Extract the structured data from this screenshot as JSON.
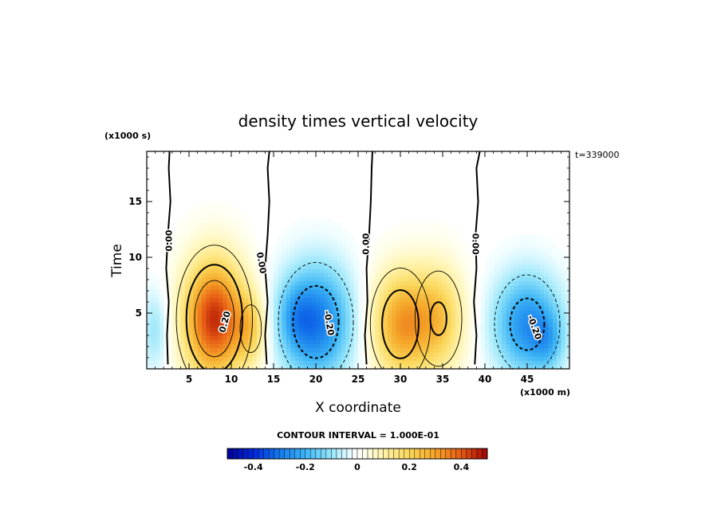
{
  "chart_data": {
    "type": "heatmap",
    "title": "density times vertical velocity",
    "xlabel": "X coordinate",
    "ylabel": "Time",
    "x_unit": "(x1000 m)",
    "y_unit": "(x1000 s)",
    "time_stamp": "t=339000",
    "xlim": [
      0,
      50
    ],
    "ylim": [
      0,
      19.5
    ],
    "x_ticks": [
      5,
      10,
      15,
      20,
      25,
      30,
      35,
      40,
      45
    ],
    "y_ticks": [
      5,
      10,
      15
    ],
    "contour_interval_label": "CONTOUR INTERVAL = 1.000E-01",
    "contour_labels": [
      "0.00",
      "0.00",
      "0.00",
      "0.00",
      "0.20",
      "-0.20",
      "-0.20"
    ],
    "colorbar": {
      "min": -0.5,
      "max": 0.5,
      "ticks": [
        "-0.4",
        "-0.2",
        "0",
        "0.2",
        "0.4"
      ],
      "tick_values": [
        -0.4,
        -0.2,
        0,
        0.2,
        0.4
      ]
    },
    "blobs": [
      {
        "x": 8,
        "y": 4.5,
        "sx": 2.6,
        "sy": 3.8,
        "amp": 0.45
      },
      {
        "x": 12.3,
        "y": 3.6,
        "sx": 1.3,
        "sy": 2.2,
        "amp": 0.16
      },
      {
        "x": 20,
        "y": 4.2,
        "sx": 3.0,
        "sy": 3.6,
        "amp": -0.3
      },
      {
        "x": 17.5,
        "y": 4.8,
        "sx": 1.4,
        "sy": 2.0,
        "amp": -0.08
      },
      {
        "x": 30,
        "y": 4.0,
        "sx": 2.4,
        "sy": 3.4,
        "amp": 0.3
      },
      {
        "x": 34.5,
        "y": 4.5,
        "sx": 2.2,
        "sy": 3.4,
        "amp": 0.22
      },
      {
        "x": 45,
        "y": 4.0,
        "sx": 2.8,
        "sy": 3.2,
        "amp": -0.26
      },
      {
        "x": 47.5,
        "y": 2.5,
        "sx": 1.3,
        "sy": 1.8,
        "amp": -0.1
      },
      {
        "x": 1.0,
        "y": 3.5,
        "sx": 1.2,
        "sy": 2.6,
        "amp": -0.1
      }
    ],
    "zero_lines": [
      [
        [
          2.5,
          0.4
        ],
        [
          2.4,
          3
        ],
        [
          2.6,
          6
        ],
        [
          2.3,
          9
        ],
        [
          2.5,
          12
        ],
        [
          2.8,
          15
        ],
        [
          2.6,
          18
        ],
        [
          2.7,
          19.5
        ]
      ],
      [
        [
          14.2,
          0.4
        ],
        [
          14.0,
          3
        ],
        [
          14.3,
          6
        ],
        [
          14.0,
          9
        ],
        [
          14.3,
          12
        ],
        [
          14.5,
          15
        ],
        [
          14.3,
          18
        ],
        [
          14.5,
          19.5
        ]
      ],
      [
        [
          26.0,
          0.4
        ],
        [
          25.8,
          3
        ],
        [
          26.1,
          6
        ],
        [
          26.0,
          9
        ],
        [
          26.3,
          12
        ],
        [
          26.5,
          15
        ],
        [
          26.6,
          18
        ],
        [
          26.7,
          19.5
        ]
      ],
      [
        [
          38.8,
          0.4
        ],
        [
          39.0,
          3
        ],
        [
          38.7,
          6
        ],
        [
          39.0,
          9
        ],
        [
          38.9,
          12
        ],
        [
          39.2,
          15
        ],
        [
          39.0,
          18
        ],
        [
          39.4,
          19.5
        ]
      ]
    ]
  }
}
